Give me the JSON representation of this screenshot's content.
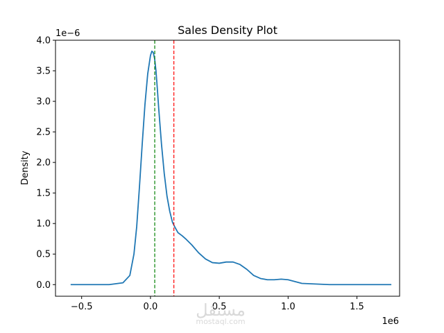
{
  "chart_data": {
    "type": "line",
    "title": "Sales Density Plot",
    "xlabel": "",
    "ylabel": "Density",
    "x_offset_label": "1e6",
    "y_offset_label": "1e−6",
    "xlim": [
      -0.69,
      1.81
    ],
    "ylim": [
      -0.19,
      4.0
    ],
    "x_ticks": [
      -0.5,
      0.0,
      0.5,
      1.0,
      1.5
    ],
    "x_tick_labels": [
      "−0.5",
      "0.0",
      "0.5",
      "1.0",
      "1.5"
    ],
    "y_ticks": [
      0.0,
      0.5,
      1.0,
      1.5,
      2.0,
      2.5,
      3.0,
      3.5,
      4.0
    ],
    "y_tick_labels": [
      "0.0",
      "0.5",
      "1.0",
      "1.5",
      "2.0",
      "2.5",
      "3.0",
      "3.5",
      "4.0"
    ],
    "grid": false,
    "series": [
      {
        "color": "#1f77b4",
        "x": [
          -0.58,
          -0.3,
          -0.2,
          -0.15,
          -0.12,
          -0.1,
          -0.08,
          -0.06,
          -0.04,
          -0.02,
          0.0,
          0.01,
          0.02,
          0.03,
          0.04,
          0.05,
          0.06,
          0.08,
          0.1,
          0.12,
          0.14,
          0.16,
          0.18,
          0.2,
          0.23,
          0.26,
          0.3,
          0.35,
          0.4,
          0.45,
          0.5,
          0.55,
          0.6,
          0.65,
          0.7,
          0.75,
          0.8,
          0.85,
          0.9,
          0.95,
          1.0,
          1.05,
          1.1,
          1.2,
          1.3,
          1.5,
          1.75
        ],
        "y": [
          0.0,
          0.0,
          0.03,
          0.15,
          0.5,
          0.95,
          1.6,
          2.3,
          2.95,
          3.45,
          3.75,
          3.82,
          3.8,
          3.7,
          3.5,
          3.2,
          2.88,
          2.3,
          1.82,
          1.45,
          1.2,
          1.02,
          0.93,
          0.85,
          0.8,
          0.74,
          0.65,
          0.52,
          0.42,
          0.36,
          0.35,
          0.37,
          0.37,
          0.33,
          0.25,
          0.15,
          0.1,
          0.08,
          0.08,
          0.09,
          0.08,
          0.05,
          0.02,
          0.01,
          0.0,
          0.0,
          0.0
        ]
      }
    ],
    "vlines": [
      {
        "x": 0.031,
        "color": "#008000",
        "style": "dashed"
      },
      {
        "x": 0.17,
        "color": "#ff0000",
        "style": "dashed"
      }
    ]
  },
  "watermark": {
    "logo_text": "مستقل",
    "domain": "mostaql.com"
  }
}
